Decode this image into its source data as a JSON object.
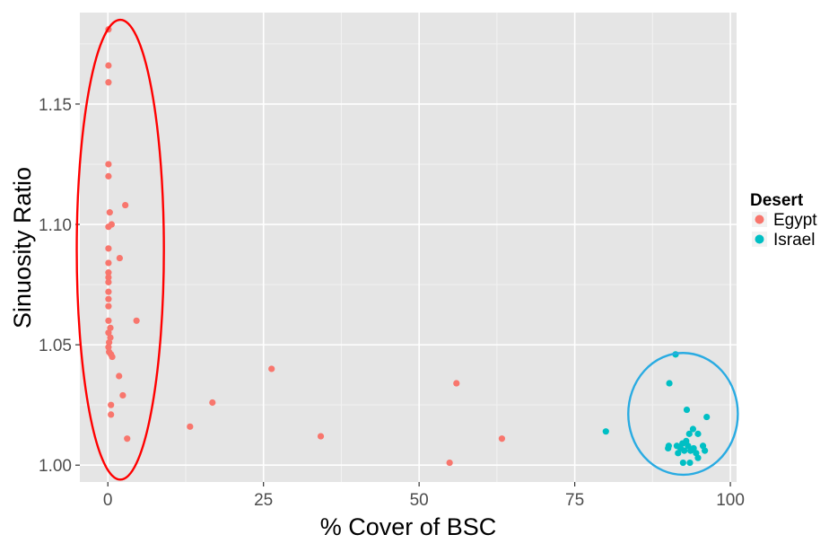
{
  "chart_data": {
    "type": "scatter",
    "title": "",
    "xlabel": "% Cover of BSC",
    "ylabel": "Sinuosity Ratio",
    "xlim": [
      -4.5,
      101
    ],
    "ylim": [
      0.993,
      1.188
    ],
    "x_ticks": [
      0,
      25,
      50,
      75,
      100
    ],
    "y_ticks": [
      1.0,
      1.05,
      1.1,
      1.15
    ],
    "x_tick_labels": [
      "0",
      "25",
      "50",
      "75",
      "100"
    ],
    "y_tick_labels": [
      "1.00",
      "1.05",
      "1.10",
      "1.15"
    ],
    "grid": true,
    "legend": {
      "title": "Desert",
      "position": "right"
    },
    "series": [
      {
        "name": "Egypt",
        "color": "#f8766d",
        "points": [
          [
            0.1,
            1.181
          ],
          [
            0.1,
            1.166
          ],
          [
            0.1,
            1.159
          ],
          [
            0.1,
            1.125
          ],
          [
            0.1,
            1.12
          ],
          [
            0.3,
            1.105
          ],
          [
            0.1,
            1.099
          ],
          [
            0.6,
            1.1
          ],
          [
            0.1,
            1.09
          ],
          [
            0.1,
            1.084
          ],
          [
            0.1,
            1.08
          ],
          [
            0.1,
            1.078
          ],
          [
            0.1,
            1.076
          ],
          [
            0.1,
            1.072
          ],
          [
            0.1,
            1.069
          ],
          [
            0.1,
            1.066
          ],
          [
            0.1,
            1.06
          ],
          [
            0.1,
            1.055
          ],
          [
            0.4,
            1.053
          ],
          [
            0.4,
            1.057
          ],
          [
            0.2,
            1.051
          ],
          [
            0.1,
            1.049
          ],
          [
            0.2,
            1.047
          ],
          [
            0.5,
            1.046
          ],
          [
            0.7,
            1.045
          ],
          [
            0.5,
            1.025
          ],
          [
            0.5,
            1.021
          ],
          [
            1.8,
            1.037
          ],
          [
            2.4,
            1.029
          ],
          [
            1.9,
            1.086
          ],
          [
            2.8,
            1.108
          ],
          [
            4.6,
            1.06
          ],
          [
            3.1,
            1.011
          ],
          [
            13.2,
            1.016
          ],
          [
            16.8,
            1.026
          ],
          [
            26.3,
            1.04
          ],
          [
            34.2,
            1.012
          ],
          [
            54.9,
            1.001
          ],
          [
            56.0,
            1.034
          ],
          [
            63.3,
            1.011
          ]
        ]
      },
      {
        "name": "Israel",
        "color": "#00bfc4",
        "points": [
          [
            80.0,
            1.014
          ],
          [
            90.2,
            1.034
          ],
          [
            91.2,
            1.046
          ],
          [
            93.0,
            1.023
          ],
          [
            96.2,
            1.02
          ],
          [
            93.4,
            1.013
          ],
          [
            94.0,
            1.015
          ],
          [
            94.8,
            1.013
          ],
          [
            90.0,
            1.007
          ],
          [
            90.1,
            1.008
          ],
          [
            91.4,
            1.008
          ],
          [
            91.6,
            1.005
          ],
          [
            92.0,
            1.007
          ],
          [
            92.3,
            1.009
          ],
          [
            92.6,
            1.006
          ],
          [
            92.9,
            1.01
          ],
          [
            93.2,
            1.008
          ],
          [
            93.6,
            1.006
          ],
          [
            94.1,
            1.007
          ],
          [
            94.5,
            1.005
          ],
          [
            94.8,
            1.003
          ],
          [
            95.6,
            1.008
          ],
          [
            95.9,
            1.006
          ],
          [
            92.4,
            1.001
          ],
          [
            93.5,
            1.001
          ]
        ]
      }
    ],
    "annotations": [
      {
        "shape": "ellipse",
        "color": "#ff0000",
        "cx": 2.0,
        "cy": 1.0895,
        "rx_units": 7.0,
        "ry_units": 0.0955
      },
      {
        "shape": "ellipse",
        "color": "#29abe2",
        "cx": 92.4,
        "cy": 1.0213,
        "rx_units": 8.8,
        "ry_units": 0.0253
      }
    ]
  }
}
